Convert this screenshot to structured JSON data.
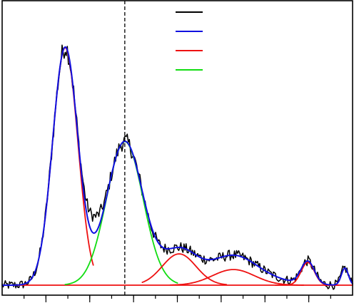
{
  "chart_data": {
    "type": "line",
    "title": "",
    "xlabel": "",
    "ylabel": "",
    "xlim": [
      0,
      100
    ],
    "ylim": [
      -3.5,
      100
    ],
    "grid": false,
    "x_minor_ticks": [
      6.25,
      12.5,
      18.75,
      25,
      31.25,
      37.5,
      43.75,
      50,
      56.25,
      62.5,
      68.75,
      75,
      81.25,
      87.5,
      93.75
    ],
    "x_major_ticks": [
      12.5,
      25,
      37.5,
      50,
      62.5,
      75,
      87.5
    ],
    "reference_line": {
      "x": 35,
      "style": "dashed",
      "color": "#000000"
    },
    "legend": {
      "placement": "top-center",
      "entries": [
        {
          "color": "#000000",
          "label": ""
        },
        {
          "color": "#1010e0",
          "label": ""
        },
        {
          "color": "#ee1111",
          "label": ""
        },
        {
          "color": "#11dd11",
          "label": ""
        }
      ]
    },
    "components": [
      {
        "name": "",
        "color": "#ee1111",
        "center": 18.0,
        "amplitude": 83.5,
        "width": 3.6,
        "x_range": [
          12,
          26
        ]
      },
      {
        "name": "",
        "color": "#11dd11",
        "center": 35.0,
        "amplitude": 50.5,
        "width": 5.2,
        "x_range": [
          18,
          50
        ]
      },
      {
        "name": "",
        "color": "#ee1111",
        "center": 50.5,
        "amplitude": 11.0,
        "width": 4.8,
        "x_range": [
          40,
          64
        ]
      },
      {
        "name": "",
        "color": "#ee1111",
        "center": 66.0,
        "amplitude": 5.5,
        "width": 6.0,
        "x_range": [
          48,
          86
        ]
      },
      {
        "name": "",
        "color": "#ee1111",
        "center": 87.2,
        "amplitude": 8.0,
        "width": 1.9,
        "x_range": [
          78,
          96
        ]
      },
      {
        "name": "",
        "color": "#ee1111",
        "center": 97.8,
        "amplitude": 6.0,
        "width": 1.0,
        "x_range": [
          92,
          100
        ]
      }
    ],
    "baseline": 0,
    "baseline_color": "#ee1111",
    "fit_color": "#1010e0",
    "fit_extra_broad": {
      "center": 66.0,
      "amplitude": 5.0,
      "width": 10.0
    },
    "data_color": "#000000",
    "data_noise_amplitude": 1.6,
    "data_shoulder": {
      "center": 26.0,
      "amplitude": 6.0,
      "width": 2.0
    }
  }
}
